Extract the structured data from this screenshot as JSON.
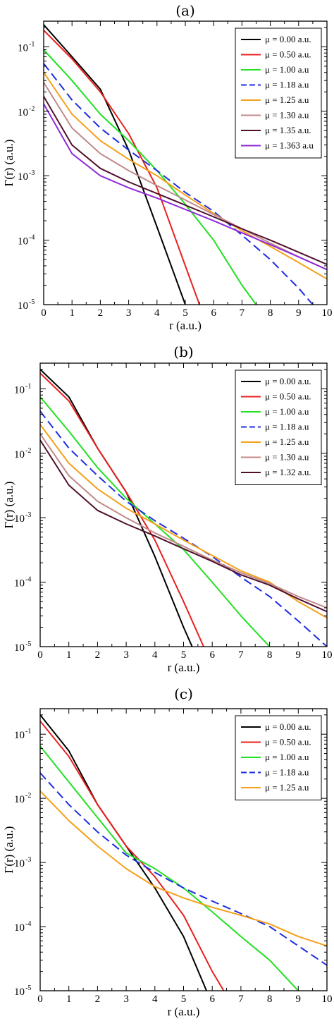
{
  "chart_data": [
    {
      "panel_label": "(a)",
      "type": "line",
      "xlabel": "r (a.u.)",
      "ylabel": "Γ(r) (a.u.)",
      "xlim": [
        0,
        10
      ],
      "ylim": [
        1e-05,
        0.25
      ],
      "y_scale": "log",
      "x_ticks": [
        "0",
        "1",
        "2",
        "3",
        "4",
        "5",
        "6",
        "7",
        "8",
        "9",
        "10"
      ],
      "y_ticks": [
        {
          "base": "10",
          "exp": "-5"
        },
        {
          "base": "10",
          "exp": "-4"
        },
        {
          "base": "10",
          "exp": "-3"
        },
        {
          "base": "10",
          "exp": "-2"
        },
        {
          "base": "10",
          "exp": "-1"
        }
      ],
      "legend_position": "top-right",
      "series": [
        {
          "name": "μ = 0.00 a.u.",
          "color": "#000000",
          "style": "solid",
          "x": [
            0,
            1,
            2,
            3,
            4,
            5
          ],
          "y": [
            0.22,
            0.07,
            0.022,
            0.0025,
            0.00016,
            1e-05
          ]
        },
        {
          "name": "μ = 0.50 a.u.",
          "color": "#e8211d",
          "style": "solid",
          "x": [
            0,
            1,
            2,
            3,
            4,
            5,
            5.5
          ],
          "y": [
            0.18,
            0.065,
            0.02,
            0.0045,
            0.00065,
            4e-05,
            1e-05
          ]
        },
        {
          "name": "μ = 1.00 a.u",
          "color": "#22e022",
          "style": "solid",
          "x": [
            0,
            1,
            2,
            3,
            4,
            5,
            6,
            7,
            7.5
          ],
          "y": [
            0.09,
            0.03,
            0.009,
            0.0035,
            0.0012,
            0.00036,
            0.0001,
            2e-05,
            1e-05
          ]
        },
        {
          "name": "μ = 1.18 a.u",
          "color": "#1f2de0",
          "style": "dashed",
          "x": [
            0,
            1,
            2,
            3,
            4,
            5,
            6,
            7,
            8,
            9,
            9.5
          ],
          "y": [
            0.055,
            0.015,
            0.0055,
            0.0025,
            0.0012,
            0.00055,
            0.00028,
            0.00012,
            5e-05,
            1.8e-05,
            1e-05
          ]
        },
        {
          "name": "μ = 1.25 a.u",
          "color": "#f5a01a",
          "style": "solid",
          "x": [
            0,
            1,
            2,
            3,
            4,
            5,
            6,
            7,
            8,
            9,
            10
          ],
          "y": [
            0.04,
            0.009,
            0.0035,
            0.0018,
            0.001,
            0.0005,
            0.00026,
            0.00014,
            8e-05,
            4.5e-05,
            2.5e-05
          ]
        },
        {
          "name": "μ = 1.30 a.u",
          "color": "#c08a8a",
          "style": "solid",
          "x": [
            0,
            1,
            2,
            3,
            4,
            5,
            6,
            7,
            8,
            9,
            10
          ],
          "y": [
            0.028,
            0.0055,
            0.0022,
            0.0012,
            0.0007,
            0.00042,
            0.00025,
            0.00015,
            9e-05,
            5.5e-05,
            3.5e-05
          ]
        },
        {
          "name": "μ = 1.35 a.u.",
          "color": "#50102c",
          "style": "solid",
          "x": [
            0,
            1,
            2,
            3,
            4,
            5,
            6,
            7,
            8,
            9,
            10
          ],
          "y": [
            0.017,
            0.003,
            0.0013,
            0.0008,
            0.00053,
            0.00035,
            0.00023,
            0.00015,
            0.0001,
            6.5e-05,
            4.2e-05
          ]
        },
        {
          "name": "μ = 1.363 a.u",
          "color": "#8e2ad8",
          "style": "solid",
          "x": [
            0,
            1,
            2,
            3,
            4,
            5,
            6,
            7,
            8,
            9,
            10
          ],
          "y": [
            0.013,
            0.0022,
            0.001,
            0.00065,
            0.00045,
            0.0003,
            0.0002,
            0.00013,
            8.5e-05,
            5.5e-05,
            3.5e-05
          ]
        }
      ]
    },
    {
      "panel_label": "(b)",
      "type": "line",
      "xlabel": "r (a.u.)",
      "ylabel": "Γ(r) (a.u.)",
      "xlim": [
        0,
        10
      ],
      "ylim": [
        1e-05,
        0.25
      ],
      "y_scale": "log",
      "x_ticks": [
        "0",
        "1",
        "2",
        "3",
        "4",
        "5",
        "6",
        "7",
        "8",
        "9",
        "10"
      ],
      "y_ticks": [
        {
          "base": "10",
          "exp": "-5"
        },
        {
          "base": "10",
          "exp": "-4"
        },
        {
          "base": "10",
          "exp": "-3"
        },
        {
          "base": "10",
          "exp": "-2"
        },
        {
          "base": "10",
          "exp": "-1"
        }
      ],
      "legend_position": "top-right",
      "series": [
        {
          "name": "μ = 0.00 a.u.",
          "color": "#000000",
          "style": "solid",
          "x": [
            0,
            1,
            2,
            3,
            4,
            5,
            5.3
          ],
          "y": [
            0.2,
            0.075,
            0.012,
            0.0025,
            0.00025,
            2e-05,
            1e-05
          ]
        },
        {
          "name": "μ = 0.50 a.u.",
          "color": "#e8211d",
          "style": "solid",
          "x": [
            0,
            1,
            2,
            3,
            4,
            5,
            5.7
          ],
          "y": [
            0.175,
            0.065,
            0.012,
            0.0025,
            0.00045,
            5e-05,
            1e-05
          ]
        },
        {
          "name": "μ = 1.00 a.u",
          "color": "#22e022",
          "style": "solid",
          "x": [
            0,
            1,
            2,
            3,
            4,
            5,
            6,
            7,
            8
          ],
          "y": [
            0.075,
            0.022,
            0.006,
            0.002,
            0.0008,
            0.00032,
            0.0001,
            3e-05,
            1e-05
          ]
        },
        {
          "name": "μ = 1.18 a.u",
          "color": "#1f2de0",
          "style": "dashed",
          "x": [
            0,
            1,
            2,
            3,
            4,
            5,
            6,
            7,
            8,
            9,
            10
          ],
          "y": [
            0.045,
            0.012,
            0.0045,
            0.0018,
            0.0009,
            0.00048,
            0.00025,
            0.00012,
            6e-05,
            2.5e-05,
            1e-05
          ]
        },
        {
          "name": "μ = 1.25 a.u",
          "color": "#f5a01a",
          "style": "solid",
          "x": [
            0,
            1,
            2,
            3,
            4,
            5,
            6,
            7,
            8,
            9,
            10
          ],
          "y": [
            0.028,
            0.007,
            0.0028,
            0.0014,
            0.0008,
            0.00045,
            0.00026,
            0.00015,
            0.0001,
            5e-05,
            2.8e-05
          ]
        },
        {
          "name": "μ = 1.30 a.u",
          "color": "#c08a8a",
          "style": "solid",
          "x": [
            0,
            1,
            2,
            3,
            4,
            5,
            6,
            7,
            8,
            9,
            10
          ],
          "y": [
            0.02,
            0.0045,
            0.0018,
            0.001,
            0.00058,
            0.00036,
            0.00022,
            0.00014,
            9.5e-05,
            6e-05,
            4e-05
          ]
        },
        {
          "name": "μ = 1.32 a.u.",
          "color": "#50102c",
          "style": "solid",
          "x": [
            0,
            1,
            2,
            3,
            4,
            5,
            6,
            7,
            8,
            9,
            10
          ],
          "y": [
            0.016,
            0.0032,
            0.0013,
            0.0008,
            0.00052,
            0.00033,
            0.00021,
            0.00013,
            9e-05,
            5.5e-05,
            3.5e-05
          ]
        }
      ]
    },
    {
      "panel_label": "(c)",
      "type": "line",
      "xlabel": "r (a.u.)",
      "ylabel": "Γ(r) (a.u.)",
      "xlim": [
        0,
        10
      ],
      "ylim": [
        1e-05,
        0.25
      ],
      "y_scale": "log",
      "x_ticks": [
        "0",
        "1",
        "2",
        "3",
        "4",
        "5",
        "6",
        "7",
        "8",
        "9",
        "10"
      ],
      "y_ticks": [
        {
          "base": "10",
          "exp": "-5"
        },
        {
          "base": "10",
          "exp": "-4"
        },
        {
          "base": "10",
          "exp": "-3"
        },
        {
          "base": "10",
          "exp": "-2"
        },
        {
          "base": "10",
          "exp": "-1"
        }
      ],
      "legend_position": "top-right",
      "series": [
        {
          "name": "μ = 0.00 a.u.",
          "color": "#000000",
          "style": "solid",
          "x": [
            0,
            1,
            2,
            3,
            4,
            5,
            5.8
          ],
          "y": [
            0.2,
            0.055,
            0.008,
            0.0018,
            0.0004,
            7e-05,
            1e-05
          ]
        },
        {
          "name": "μ = 0.50 a.u.",
          "color": "#e8211d",
          "style": "solid",
          "x": [
            0,
            1,
            2,
            3,
            4,
            5,
            6,
            6.4
          ],
          "y": [
            0.16,
            0.045,
            0.008,
            0.0018,
            0.0006,
            0.00015,
            2e-05,
            1e-05
          ]
        },
        {
          "name": "μ = 1.00 a.u",
          "color": "#22e022",
          "style": "solid",
          "x": [
            0,
            1,
            2,
            3,
            4,
            5,
            6,
            7,
            8,
            9
          ],
          "y": [
            0.065,
            0.018,
            0.005,
            0.0014,
            0.0008,
            0.0004,
            0.00017,
            7e-05,
            3e-05,
            1e-05
          ]
        },
        {
          "name": "μ = 1.18 a.u",
          "color": "#1f2de0",
          "style": "dashed",
          "x": [
            0,
            1,
            2,
            3,
            4,
            5,
            6,
            7,
            8,
            9,
            10
          ],
          "y": [
            0.025,
            0.008,
            0.003,
            0.0013,
            0.0007,
            0.0004,
            0.00025,
            0.00016,
            0.0001,
            5e-05,
            2.5e-05
          ]
        },
        {
          "name": "μ = 1.25 a.u",
          "color": "#f5a01a",
          "style": "solid",
          "x": [
            0,
            1,
            2,
            3,
            4,
            5,
            6,
            7,
            8,
            9,
            10
          ],
          "y": [
            0.013,
            0.0045,
            0.0018,
            0.0008,
            0.00042,
            0.00028,
            0.0002,
            0.00015,
            0.00011,
            7e-05,
            5e-05
          ]
        }
      ]
    }
  ]
}
